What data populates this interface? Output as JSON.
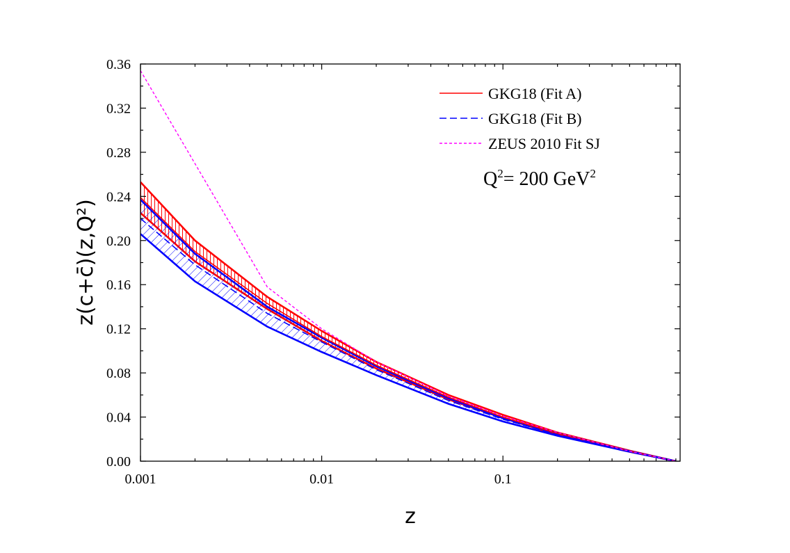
{
  "chart_data": {
    "type": "line",
    "xscale": "log",
    "xlim": [
      0.001,
      0.95
    ],
    "ylim": [
      0,
      0.36
    ],
    "xlabel": "z",
    "ylabel": "z(c+c̄)(z,Q²)",
    "x_ticks": [
      {
        "value": 0.001,
        "label": "0.001"
      },
      {
        "value": 0.01,
        "label": "0.01"
      },
      {
        "value": 0.1,
        "label": "0.1"
      }
    ],
    "y_ticks": [
      {
        "value": 0.0,
        "label": "0.00"
      },
      {
        "value": 0.04,
        "label": "0.04"
      },
      {
        "value": 0.08,
        "label": "0.08"
      },
      {
        "value": 0.12,
        "label": "0.12"
      },
      {
        "value": 0.16,
        "label": "0.16"
      },
      {
        "value": 0.2,
        "label": "0.20"
      },
      {
        "value": 0.24,
        "label": "0.24"
      },
      {
        "value": 0.28,
        "label": "0.28"
      },
      {
        "value": 0.32,
        "label": "0.32"
      },
      {
        "value": 0.36,
        "label": "0.36"
      }
    ],
    "annotation": {
      "prefix": "Q",
      "exp1": "2",
      "middle": "= 200 GeV",
      "exp2": "2"
    },
    "legend_position": "top-right",
    "grid": false,
    "series": [
      {
        "name": "GKG18 (Fit A)",
        "color": "#ff0000",
        "style": "solid",
        "x": [
          0.001,
          0.002,
          0.005,
          0.01,
          0.02,
          0.05,
          0.1,
          0.2,
          0.5,
          0.9
        ],
        "y": [
          0.239,
          0.19,
          0.143,
          0.113,
          0.087,
          0.058,
          0.04,
          0.025,
          0.009,
          0.0
        ]
      },
      {
        "name": "GKG18 (Fit B)",
        "color": "#0000ff",
        "style": "dashed",
        "x": [
          0.001,
          0.002,
          0.005,
          0.01,
          0.02,
          0.05,
          0.1,
          0.2,
          0.5,
          0.9
        ],
        "y": [
          0.22,
          0.178,
          0.134,
          0.108,
          0.083,
          0.055,
          0.038,
          0.024,
          0.009,
          0.0
        ]
      },
      {
        "name": "ZEUS 2010 Fit SJ",
        "color": "#ff00ff",
        "style": "dotted",
        "x": [
          0.001,
          0.005,
          0.01,
          0.02,
          0.05,
          0.1,
          0.2,
          0.5,
          0.9
        ],
        "y": [
          0.354,
          0.158,
          0.12,
          0.09,
          0.059,
          0.041,
          0.026,
          0.009,
          0.0
        ]
      }
    ],
    "bands": [
      {
        "series": "GKG18 (Fit A)",
        "color": "#ff0000",
        "x": [
          0.001,
          0.002,
          0.005,
          0.01,
          0.02,
          0.05,
          0.1,
          0.2,
          0.5,
          0.9
        ],
        "upper": [
          0.253,
          0.2,
          0.149,
          0.118,
          0.09,
          0.06,
          0.042,
          0.026,
          0.0095,
          0.0
        ],
        "lower": [
          0.225,
          0.181,
          0.138,
          0.109,
          0.084,
          0.056,
          0.039,
          0.024,
          0.0085,
          0.0
        ]
      },
      {
        "series": "GKG18 (Fit B)",
        "color": "#0000ff",
        "x": [
          0.001,
          0.002,
          0.005,
          0.01,
          0.02,
          0.05,
          0.1,
          0.2,
          0.5,
          0.9
        ],
        "upper": [
          0.237,
          0.188,
          0.14,
          0.112,
          0.086,
          0.057,
          0.039,
          0.025,
          0.009,
          0.0
        ],
        "lower": [
          0.206,
          0.163,
          0.122,
          0.099,
          0.078,
          0.052,
          0.036,
          0.023,
          0.0085,
          0.0
        ]
      }
    ]
  }
}
